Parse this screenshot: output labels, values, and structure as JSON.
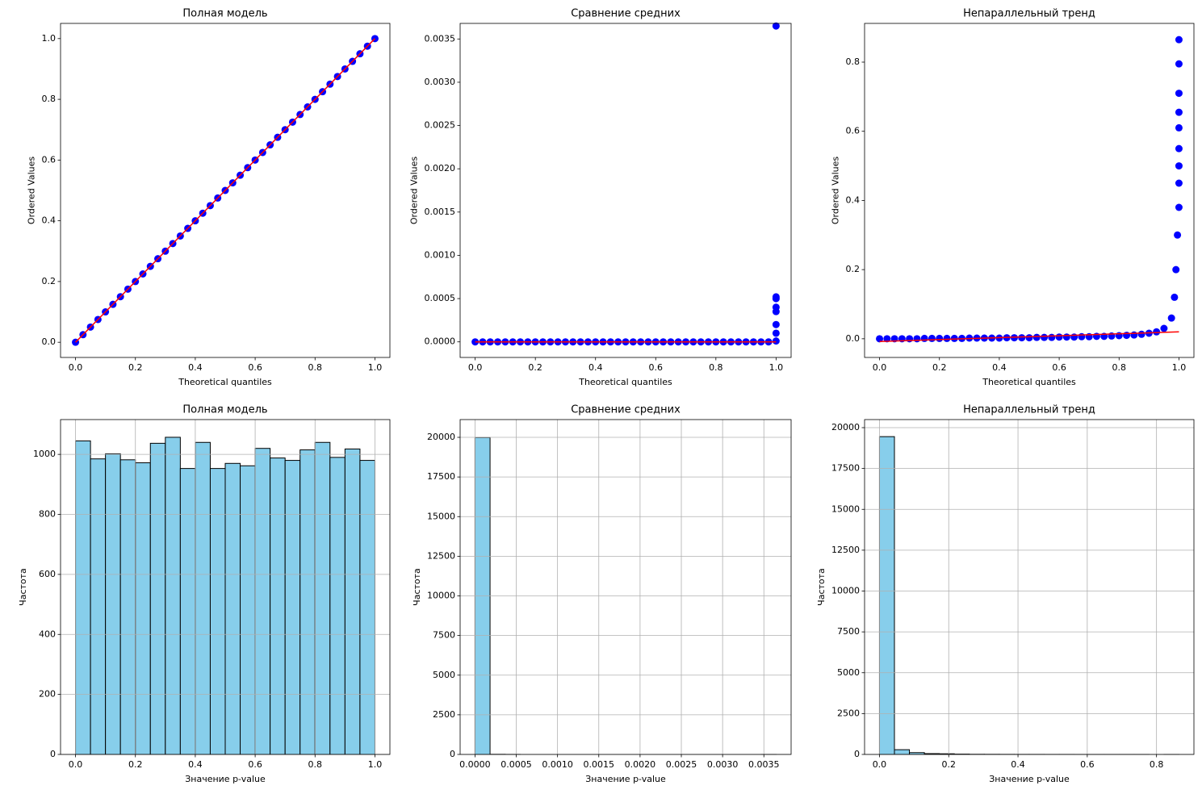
{
  "chart_data": [
    {
      "type": "qq",
      "title": "Полная модель",
      "xlabel": "Theoretical quantiles",
      "ylabel": "Ordered Values",
      "x": [
        0,
        0.025,
        0.05,
        0.075,
        0.1,
        0.125,
        0.15,
        0.175,
        0.2,
        0.225,
        0.25,
        0.275,
        0.3,
        0.325,
        0.35,
        0.375,
        0.4,
        0.425,
        0.45,
        0.475,
        0.5,
        0.525,
        0.55,
        0.575,
        0.6,
        0.625,
        0.65,
        0.675,
        0.7,
        0.725,
        0.75,
        0.775,
        0.8,
        0.825,
        0.85,
        0.875,
        0.9,
        0.925,
        0.95,
        0.975,
        1
      ],
      "values": [
        0,
        0.025,
        0.05,
        0.075,
        0.1,
        0.125,
        0.15,
        0.175,
        0.2,
        0.225,
        0.25,
        0.275,
        0.3,
        0.325,
        0.35,
        0.375,
        0.4,
        0.425,
        0.45,
        0.475,
        0.5,
        0.525,
        0.55,
        0.575,
        0.6,
        0.625,
        0.65,
        0.675,
        0.7,
        0.725,
        0.75,
        0.775,
        0.8,
        0.825,
        0.85,
        0.875,
        0.9,
        0.925,
        0.95,
        0.975,
        1
      ],
      "color": "#0000ff",
      "line": {
        "x": [
          0,
          1
        ],
        "values": [
          0,
          1
        ],
        "color": "#ff0000"
      },
      "xlim": [
        -0.05,
        1.05
      ],
      "ylim": [
        -0.05,
        1.05
      ],
      "xticks": [
        {
          "value": 0,
          "label": "0.0"
        },
        0.2,
        0.4,
        0.6,
        0.8,
        {
          "value": 1,
          "label": "1.0"
        }
      ],
      "yticks": [
        {
          "value": 0,
          "label": "0.0"
        },
        0.2,
        0.4,
        0.6,
        0.8,
        {
          "value": 1,
          "label": "1.0"
        }
      ],
      "grid": false
    },
    {
      "type": "qq",
      "title": "Сравнение средних",
      "xlabel": "Theoretical quantiles",
      "ylabel": "Ordered Values",
      "x": [
        0,
        0.025,
        0.05,
        0.075,
        0.1,
        0.125,
        0.15,
        0.175,
        0.2,
        0.225,
        0.25,
        0.275,
        0.3,
        0.325,
        0.35,
        0.375,
        0.4,
        0.425,
        0.45,
        0.475,
        0.5,
        0.525,
        0.55,
        0.575,
        0.6,
        0.625,
        0.65,
        0.675,
        0.7,
        0.725,
        0.75,
        0.775,
        0.8,
        0.825,
        0.85,
        0.875,
        0.9,
        0.925,
        0.95,
        0.975,
        1,
        1,
        1,
        1,
        1,
        1,
        1,
        1
      ],
      "values": [
        0,
        0,
        0,
        0,
        0,
        0,
        0,
        0,
        0,
        0,
        0,
        0,
        0,
        0,
        0,
        0,
        0,
        0,
        0,
        0,
        0,
        0,
        0,
        0,
        0,
        0,
        0,
        0,
        0,
        0,
        0,
        0,
        0,
        0,
        0,
        0,
        0,
        0,
        0,
        0,
        1e-05,
        0.0001,
        0.0002,
        0.00035,
        0.0004,
        0.0005,
        0.00052,
        0.00365
      ],
      "color": "#0000ff",
      "line": {
        "x": [
          0,
          1
        ],
        "values": [
          0,
          0
        ],
        "color": "#ff0000"
      },
      "xlim": [
        -0.05,
        1.05
      ],
      "ylim": [
        -0.00018,
        0.00368
      ],
      "xticks": [
        {
          "value": 0,
          "label": "0.0"
        },
        0.2,
        0.4,
        0.6,
        0.8,
        {
          "value": 1,
          "label": "1.0"
        }
      ],
      "yticks": [
        {
          "value": 0,
          "label": "0.0000"
        },
        {
          "value": 0.0005,
          "label": "0.0005"
        },
        {
          "value": 0.001,
          "label": "0.0010"
        },
        {
          "value": 0.0015,
          "label": "0.0015"
        },
        {
          "value": 0.002,
          "label": "0.0020"
        },
        {
          "value": 0.0025,
          "label": "0.0025"
        },
        {
          "value": 0.003,
          "label": "0.0030"
        },
        {
          "value": 0.0035,
          "label": "0.0035"
        }
      ],
      "grid": false
    },
    {
      "type": "qq",
      "title": "Непараллельный тренд",
      "xlabel": "Theoretical quantiles",
      "ylabel": "Ordered Values",
      "x": [
        0,
        0.025,
        0.05,
        0.075,
        0.1,
        0.125,
        0.15,
        0.175,
        0.2,
        0.225,
        0.25,
        0.275,
        0.3,
        0.325,
        0.35,
        0.375,
        0.4,
        0.425,
        0.45,
        0.475,
        0.5,
        0.525,
        0.55,
        0.575,
        0.6,
        0.625,
        0.65,
        0.675,
        0.7,
        0.725,
        0.75,
        0.775,
        0.8,
        0.825,
        0.85,
        0.875,
        0.9,
        0.925,
        0.95,
        0.975,
        0.985,
        0.99,
        0.995,
        1,
        1,
        1,
        1,
        1,
        1,
        1,
        1,
        1
      ],
      "values": [
        0,
        0,
        0,
        0,
        0,
        0,
        0.001,
        0.001,
        0.001,
        0.001,
        0.001,
        0.001,
        0.002,
        0.002,
        0.002,
        0.002,
        0.002,
        0.003,
        0.003,
        0.003,
        0.003,
        0.004,
        0.004,
        0.004,
        0.005,
        0.005,
        0.005,
        0.006,
        0.006,
        0.007,
        0.007,
        0.008,
        0.009,
        0.01,
        0.011,
        0.013,
        0.016,
        0.02,
        0.03,
        0.06,
        0.12,
        0.2,
        0.3,
        0.38,
        0.45,
        0.5,
        0.55,
        0.61,
        0.655,
        0.71,
        0.795,
        0.865
      ],
      "color": "#0000ff",
      "line": {
        "x": [
          0,
          1
        ],
        "values": [
          -0.008,
          0.02
        ],
        "color": "#ff0000"
      },
      "xlim": [
        -0.05,
        1.05
      ],
      "ylim": [
        -0.054,
        0.912
      ],
      "xticks": [
        {
          "value": 0,
          "label": "0.0"
        },
        0.2,
        0.4,
        0.6,
        0.8,
        {
          "value": 1,
          "label": "1.0"
        }
      ],
      "yticks": [
        {
          "value": 0,
          "label": "0.0"
        },
        0.2,
        0.4,
        0.6,
        0.8
      ],
      "grid": false
    },
    {
      "type": "histogram",
      "title": "Полная модель",
      "xlabel": "Значение p-value",
      "ylabel": "Частота",
      "bins": [
        0,
        0.05,
        0.1,
        0.15,
        0.2,
        0.25,
        0.3,
        0.35,
        0.4,
        0.45,
        0.5,
        0.55,
        0.6,
        0.65,
        0.7,
        0.75,
        0.8,
        0.85,
        0.9,
        0.95,
        1
      ],
      "values": [
        1045,
        985,
        1002,
        982,
        972,
        1037,
        1057,
        953,
        1040,
        953,
        970,
        962,
        1020,
        988,
        980,
        1015,
        1040,
        990,
        1018,
        980
      ],
      "color": "#87ceeb",
      "edgecolor": "#000000",
      "xlim": [
        -0.05,
        1.05
      ],
      "ylim": [
        0,
        1116
      ],
      "xticks": [
        {
          "value": 0,
          "label": "0.0"
        },
        0.2,
        0.4,
        0.6,
        0.8,
        {
          "value": 1,
          "label": "1.0"
        }
      ],
      "yticks": [
        0,
        200,
        400,
        600,
        800,
        1000
      ],
      "grid": true
    },
    {
      "type": "histogram",
      "title": "Сравнение средних",
      "xlabel": "Значение p-value",
      "ylabel": "Частота",
      "bins": [
        0,
        0.0001825,
        0.000365,
        0.0005475,
        0.00073,
        0.0009125,
        0.001095,
        0.0012775,
        0.00146,
        0.0016425,
        0.001825,
        0.0020075,
        0.00219,
        0.0023725,
        0.002555,
        0.0027375,
        0.00292,
        0.0031025,
        0.003285,
        0.0034675,
        0.00365
      ],
      "values": [
        19988,
        8,
        3,
        0,
        0,
        0,
        0,
        0,
        0,
        0,
        0,
        0,
        0,
        0,
        0,
        0,
        0,
        0,
        0,
        1
      ],
      "color": "#87ceeb",
      "edgecolor": "#000000",
      "xlim": [
        -0.00018,
        0.00383
      ],
      "ylim": [
        0,
        21120
      ],
      "xticks": [
        {
          "value": 0,
          "label": "0.0000"
        },
        {
          "value": 0.0005,
          "label": "0.0005"
        },
        {
          "value": 0.001,
          "label": "0.0010"
        },
        {
          "value": 0.0015,
          "label": "0.0015"
        },
        {
          "value": 0.002,
          "label": "0.0020"
        },
        {
          "value": 0.0025,
          "label": "0.0025"
        },
        {
          "value": 0.003,
          "label": "0.0030"
        },
        {
          "value": 0.0035,
          "label": "0.0035"
        }
      ],
      "yticks": [
        0,
        2500,
        5000,
        7500,
        10000,
        12500,
        15000,
        17500,
        20000
      ],
      "grid": true
    },
    {
      "type": "histogram",
      "title": "Непараллельный тренд",
      "xlabel": "Значение p-value",
      "ylabel": "Частота",
      "bins": [
        0,
        0.04325,
        0.0865,
        0.12975,
        0.173,
        0.21625,
        0.2595,
        0.30275,
        0.346,
        0.38925,
        0.4325,
        0.47575,
        0.519,
        0.56225,
        0.6055,
        0.64875,
        0.692,
        0.73525,
        0.7785,
        0.82175,
        0.865
      ],
      "values": [
        19450,
        290,
        110,
        50,
        40,
        20,
        10,
        8,
        5,
        4,
        3,
        2,
        2,
        1,
        1,
        1,
        1,
        1,
        0,
        1
      ],
      "color": "#87ceeb",
      "edgecolor": "#000000",
      "xlim": [
        -0.043,
        0.908
      ],
      "ylim": [
        0,
        20494
      ],
      "xticks": [
        {
          "value": 0,
          "label": "0.0"
        },
        0.2,
        0.4,
        0.6,
        0.8
      ],
      "yticks": [
        0,
        2500,
        5000,
        7500,
        10000,
        12500,
        15000,
        17500,
        20000
      ],
      "grid": true
    }
  ]
}
